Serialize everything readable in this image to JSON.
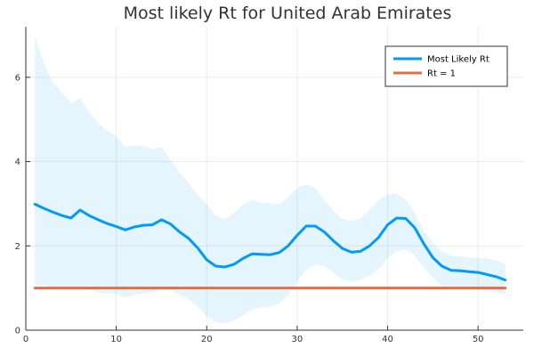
{
  "chart_data": {
    "type": "line",
    "title": "Most likely Rt for United Arab Emirates",
    "xlabel": "",
    "ylabel": "",
    "xlim": [
      0,
      55
    ],
    "ylim": [
      0,
      7.2
    ],
    "xticks": [
      0,
      10,
      20,
      30,
      40,
      50
    ],
    "yticks": [
      0,
      2,
      4,
      6
    ],
    "grid": true,
    "legend_position": "top-right",
    "x": [
      1,
      2,
      3,
      4,
      5,
      6,
      7,
      8,
      9,
      10,
      11,
      12,
      13,
      14,
      15,
      16,
      17,
      18,
      19,
      20,
      21,
      22,
      23,
      24,
      25,
      26,
      27,
      28,
      29,
      30,
      31,
      32,
      33,
      34,
      35,
      36,
      37,
      38,
      39,
      40,
      41,
      42,
      43,
      44,
      45,
      46,
      47,
      48,
      49,
      50,
      51,
      52,
      53
    ],
    "series": [
      {
        "name": "Most Likely Rt",
        "color": "#009AFA",
        "values": [
          2.99,
          2.89,
          2.8,
          2.72,
          2.66,
          2.85,
          2.72,
          2.62,
          2.53,
          2.46,
          2.38,
          2.45,
          2.49,
          2.5,
          2.62,
          2.52,
          2.33,
          2.18,
          1.95,
          1.67,
          1.52,
          1.5,
          1.56,
          1.7,
          1.81,
          1.8,
          1.79,
          1.84,
          2.0,
          2.25,
          2.47,
          2.47,
          2.33,
          2.12,
          1.94,
          1.85,
          1.87,
          2.0,
          2.2,
          2.5,
          2.66,
          2.65,
          2.43,
          2.05,
          1.72,
          1.52,
          1.42,
          1.41,
          1.39,
          1.37,
          1.32,
          1.27,
          1.19
        ]
      },
      {
        "name": "Rt = 1",
        "color": "#E26F46",
        "values": [
          1,
          1,
          1,
          1,
          1,
          1,
          1,
          1,
          1,
          1,
          1,
          1,
          1,
          1,
          1,
          1,
          1,
          1,
          1,
          1,
          1,
          1,
          1,
          1,
          1,
          1,
          1,
          1,
          1,
          1,
          1,
          1,
          1,
          1,
          1,
          1,
          1,
          1,
          1,
          1,
          1,
          1,
          1,
          1,
          1,
          1,
          1,
          1,
          1,
          1,
          1,
          1,
          1
        ]
      }
    ],
    "band": {
      "color": "#009AFA",
      "upper": [
        6.97,
        6.33,
        5.88,
        5.64,
        5.38,
        5.5,
        5.18,
        4.91,
        4.73,
        4.6,
        4.35,
        4.38,
        4.38,
        4.29,
        4.34,
        4.03,
        3.73,
        3.5,
        3.19,
        2.99,
        2.71,
        2.64,
        2.77,
        2.98,
        3.1,
        3.02,
        3.02,
        2.98,
        3.15,
        3.37,
        3.46,
        3.38,
        3.09,
        2.82,
        2.63,
        2.59,
        2.65,
        2.86,
        3.08,
        3.22,
        3.24,
        3.1,
        2.78,
        2.36,
        2.08,
        1.86,
        1.76,
        1.76,
        1.72,
        1.71,
        1.7,
        1.66,
        1.56
      ],
      "lower": [
        1.06,
        1.07,
        1.02,
        1.0,
        0.99,
        1.01,
        1.0,
        0.89,
        0.87,
        0.86,
        0.77,
        0.83,
        0.87,
        0.9,
        0.98,
        0.95,
        0.85,
        0.74,
        0.56,
        0.33,
        0.2,
        0.16,
        0.23,
        0.35,
        0.49,
        0.54,
        0.56,
        0.63,
        0.83,
        1.15,
        1.43,
        1.57,
        1.52,
        1.37,
        1.2,
        1.16,
        1.19,
        1.29,
        1.45,
        1.7,
        1.88,
        1.92,
        1.77,
        1.49,
        1.24,
        1.05,
        0.98,
        0.98,
        0.97,
        0.96,
        0.92,
        0.9,
        0.85
      ]
    }
  }
}
